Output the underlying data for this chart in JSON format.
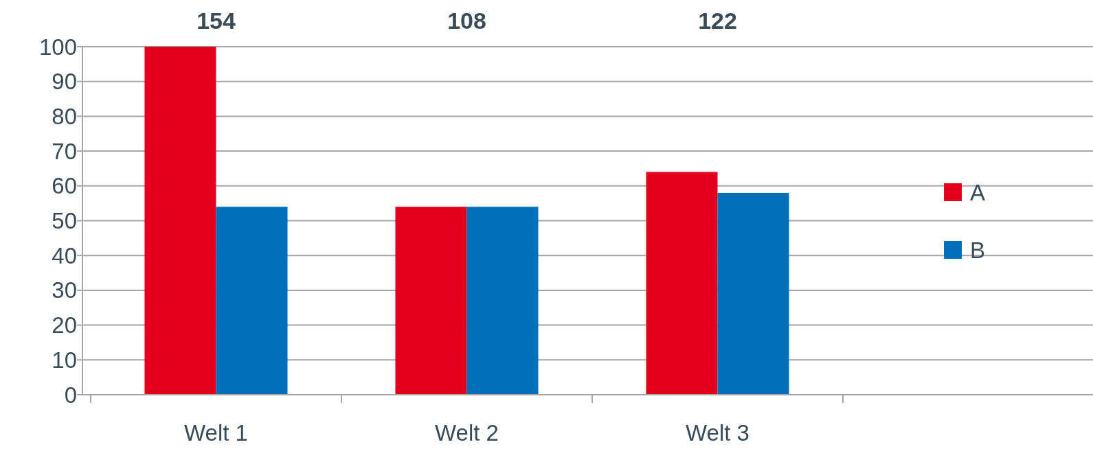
{
  "chart_data": {
    "type": "bar",
    "categories": [
      "Welt 1",
      "Welt 2",
      "Welt 3",
      null
    ],
    "series": [
      {
        "name": "A",
        "color": "#e2001a",
        "values": [
          100,
          54,
          64,
          null
        ]
      },
      {
        "name": "B",
        "color": "#0070ba",
        "values": [
          54,
          54,
          58,
          null
        ]
      }
    ],
    "ylim": [
      0,
      100
    ],
    "yticks": [
      0,
      10,
      20,
      30,
      40,
      50,
      60,
      70,
      80,
      90,
      100
    ],
    "grid": "y",
    "legend": "right",
    "annotations": [
      "154",
      "108",
      "122"
    ]
  }
}
